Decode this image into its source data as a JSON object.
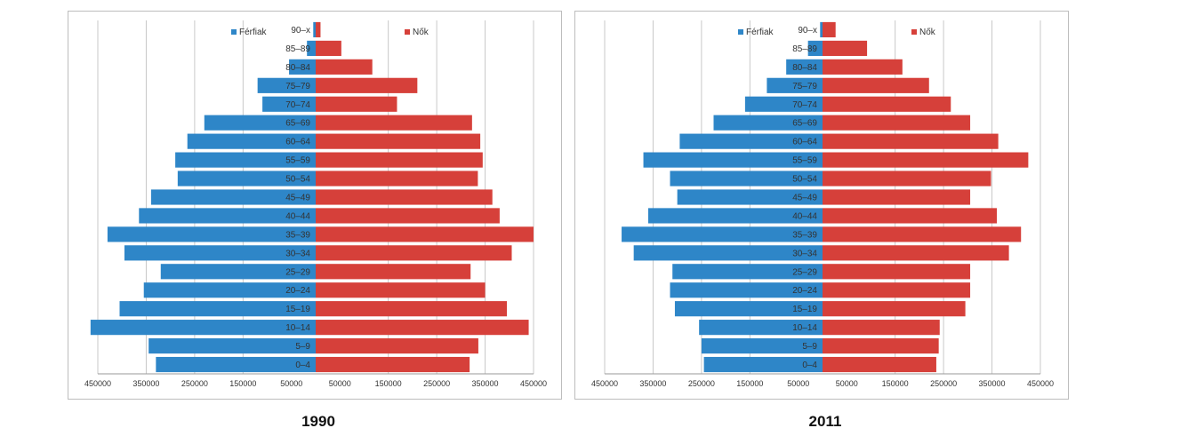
{
  "colors": {
    "male": "#2e86c8",
    "female": "#d6403a",
    "grid": "#c8c8c8"
  },
  "chart_data": [
    {
      "type": "bar",
      "orientation": "horizontal-population-pyramid",
      "title": "1990",
      "categories": [
        "0–4",
        "5–9",
        "10–14",
        "15–19",
        "20–24",
        "25–29",
        "30–34",
        "35–39",
        "40–44",
        "45–49",
        "50–54",
        "55–59",
        "60–64",
        "65–69",
        "70–74",
        "75–79",
        "80–84",
        "85–89",
        "90–x"
      ],
      "series": [
        {
          "name": "Férfiak",
          "values": [
            330000,
            345000,
            465000,
            405000,
            355000,
            320000,
            395000,
            430000,
            365000,
            340000,
            285000,
            290000,
            265000,
            230000,
            110000,
            120000,
            55000,
            18000,
            5000
          ]
        },
        {
          "name": "Nők",
          "values": [
            318000,
            336000,
            440000,
            395000,
            350000,
            320000,
            405000,
            450000,
            380000,
            365000,
            335000,
            345000,
            340000,
            323000,
            168000,
            210000,
            117000,
            53000,
            10000
          ]
        }
      ],
      "tick_labels": [
        "450000",
        "350000",
        "250000",
        "150000",
        "50000",
        "50000",
        "150000",
        "250000",
        "350000",
        "450000"
      ],
      "xlim": [
        -450000,
        450000
      ],
      "grid": true,
      "legend": "top"
    },
    {
      "type": "bar",
      "orientation": "horizontal-population-pyramid",
      "title": "2011",
      "categories": [
        "0–4",
        "5–9",
        "10–14",
        "15–19",
        "20–24",
        "25–29",
        "30–34",
        "35–39",
        "40–44",
        "45–49",
        "50–54",
        "55–59",
        "60–64",
        "65–69",
        "70–74",
        "75–79",
        "80–84",
        "85–89",
        "90–x"
      ],
      "series": [
        {
          "name": "Férfiak",
          "values": [
            245000,
            250000,
            255000,
            305000,
            315000,
            310000,
            390000,
            415000,
            360000,
            300000,
            315000,
            370000,
            295000,
            225000,
            160000,
            115000,
            75000,
            30000,
            5000
          ]
        },
        {
          "name": "Nők",
          "values": [
            235000,
            240000,
            242000,
            295000,
            305000,
            305000,
            385000,
            410000,
            360000,
            305000,
            348000,
            425000,
            363000,
            305000,
            265000,
            220000,
            165000,
            92000,
            27000
          ]
        }
      ],
      "tick_labels": [
        "450000",
        "350000",
        "250000",
        "150000",
        "50000",
        "50000",
        "150000",
        "250000",
        "350000",
        "450000"
      ],
      "xlim": [
        -450000,
        450000
      ],
      "grid": true,
      "legend": "top"
    }
  ]
}
